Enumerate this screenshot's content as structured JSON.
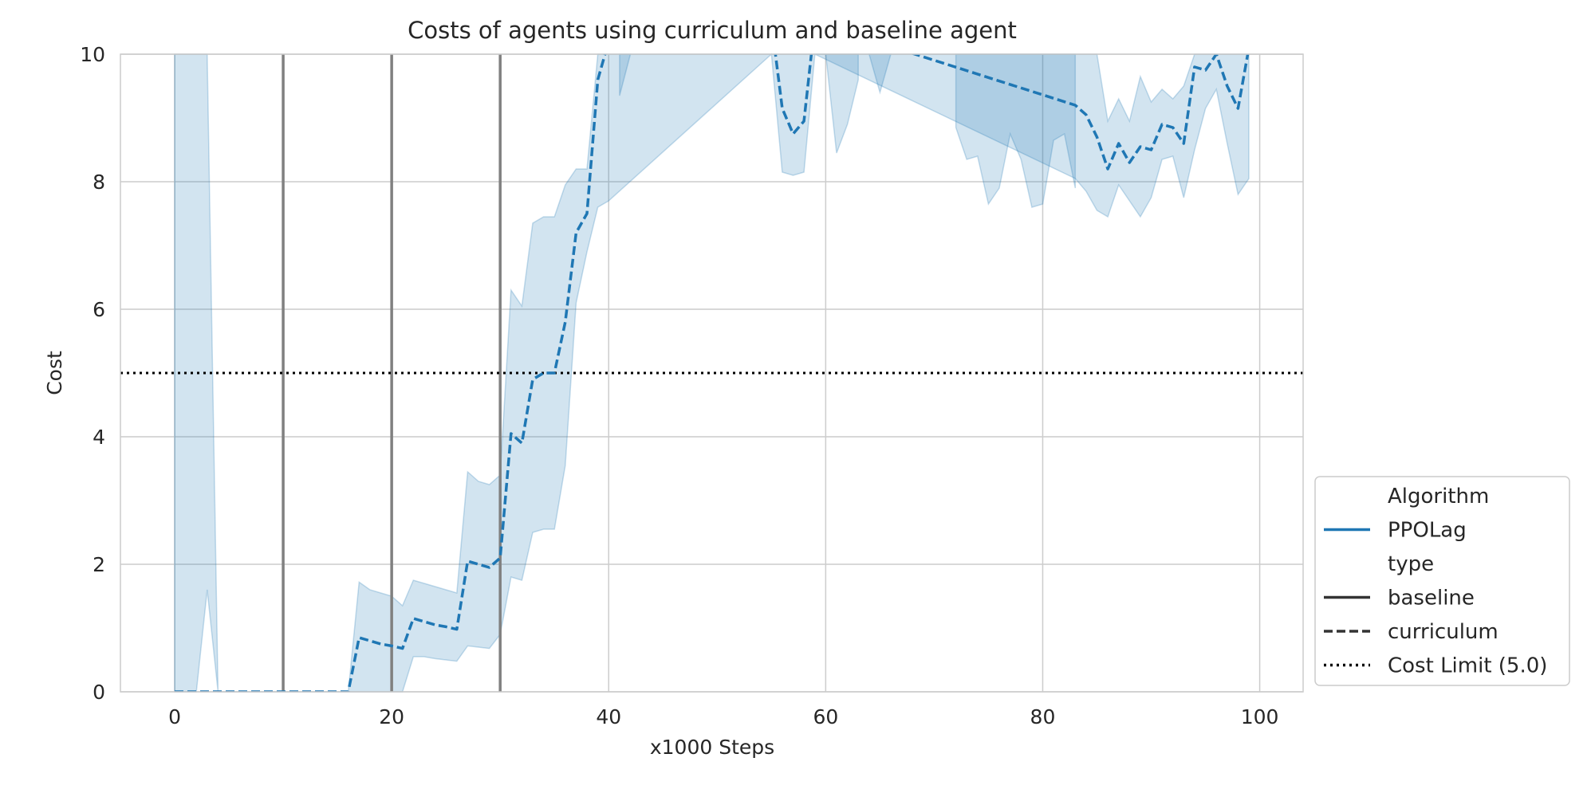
{
  "chart_data": {
    "type": "line",
    "title": "Costs of agents using curriculum and baseline agent",
    "xlabel": "x1000 Steps",
    "ylabel": "Cost",
    "xlim": [
      -5,
      104
    ],
    "ylim": [
      0,
      10
    ],
    "xticks": [
      0,
      20,
      40,
      60,
      80,
      100
    ],
    "yticks": [
      0,
      2,
      4,
      6,
      8,
      10
    ],
    "grid": true,
    "legend_position": "right",
    "colors": {
      "series": "#1f77b4",
      "band": "#1f77b4",
      "curriculum_markers": "#808080",
      "cost_limit": "#000000",
      "grid": "#cccccc",
      "legend_dark": "#333333"
    },
    "curriculum_change_steps": [
      10,
      20,
      30
    ],
    "series": [
      {
        "name": "PPOLag",
        "type": "curriculum",
        "x": [
          0,
          1,
          2,
          3,
          4,
          5,
          6,
          7,
          8,
          9,
          10,
          11,
          12,
          13,
          14,
          15,
          16,
          17,
          18,
          19,
          20,
          21,
          22,
          23,
          24,
          25,
          26,
          27,
          28,
          29,
          30,
          31,
          32,
          33,
          34,
          35,
          36,
          37,
          38,
          39,
          40,
          55,
          56,
          57,
          58,
          59,
          83,
          84,
          85,
          86,
          87,
          88,
          89,
          90,
          91,
          92,
          93,
          94,
          95,
          96,
          97,
          98,
          99
        ],
        "y": [
          0,
          0,
          0,
          0,
          0,
          0,
          0,
          0,
          0,
          0,
          0,
          0,
          0,
          0,
          0,
          0,
          0,
          0.85,
          0.8,
          0.75,
          0.72,
          0.68,
          1.15,
          1.1,
          1.05,
          1.02,
          0.98,
          2.05,
          2.0,
          1.95,
          2.1,
          4.05,
          3.9,
          4.9,
          5.0,
          5.0,
          5.8,
          7.2,
          7.5,
          9.6,
          10.2,
          10.5,
          9.15,
          8.75,
          8.95,
          10.5,
          9.2,
          9.05,
          8.7,
          8.2,
          8.6,
          8.3,
          8.55,
          8.5,
          8.9,
          8.85,
          8.6,
          9.8,
          9.75,
          10.0,
          9.5,
          9.15,
          10.1
        ],
        "y_upper": [
          10.5,
          10.5,
          10.5,
          10.5,
          0,
          0,
          0,
          0,
          0,
          0,
          0,
          0,
          0,
          0,
          0,
          0,
          0,
          1.72,
          1.6,
          1.55,
          1.5,
          1.35,
          1.75,
          1.7,
          1.65,
          1.6,
          1.55,
          3.45,
          3.3,
          3.25,
          3.4,
          6.3,
          6.05,
          7.35,
          7.45,
          7.45,
          7.95,
          8.2,
          8.2,
          10.5,
          10.5,
          10.5,
          10.5,
          10.5,
          10.5,
          10.5,
          10.5,
          10.5,
          10.5,
          8.95,
          9.3,
          8.95,
          9.65,
          9.25,
          9.45,
          9.3,
          9.5,
          10.5,
          10.5,
          10.5,
          10.5,
          10.5,
          10.5
        ],
        "y_lower": [
          0,
          0,
          0,
          1.6,
          0,
          0,
          0,
          0,
          0,
          0,
          0,
          0,
          0,
          0,
          0,
          0,
          0,
          0,
          0,
          0,
          0,
          0,
          0.55,
          0.55,
          0.52,
          0.5,
          0.48,
          0.72,
          0.7,
          0.68,
          0.9,
          1.8,
          1.75,
          2.5,
          2.55,
          2.55,
          3.55,
          6.1,
          6.9,
          7.6,
          7.7,
          10.5,
          8.15,
          8.1,
          8.15,
          10.5,
          8.05,
          7.85,
          7.55,
          7.45,
          7.95,
          7.7,
          7.45,
          7.75,
          8.35,
          8.4,
          7.75,
          8.5,
          9.15,
          9.45,
          8.6,
          7.8,
          8.05
        ]
      }
    ],
    "extra_band_segments": [
      {
        "x": [
          41,
          42
        ],
        "upper": [
          10.5,
          10.5
        ],
        "lower": [
          9.35,
          10.5
        ]
      },
      {
        "x": [
          59,
          60,
          61,
          62,
          63
        ],
        "upper": [
          10.5,
          10.5,
          10.5,
          10.5,
          10.5
        ],
        "lower": [
          10.5,
          10.5,
          8.45,
          8.9,
          9.6
        ]
      },
      {
        "x": [
          64,
          65,
          66
        ],
        "upper": [
          10.5,
          10.5,
          10.5
        ],
        "lower": [
          10.5,
          9.4,
          10.5
        ]
      },
      {
        "x": [
          72,
          73,
          74,
          75,
          76,
          77,
          78,
          79,
          80,
          81,
          82,
          83
        ],
        "upper": [
          10.5,
          10.5,
          10.5,
          10.5,
          10.5,
          10.5,
          10.5,
          10.5,
          10.5,
          10.5,
          10.5,
          10.5
        ],
        "lower": [
          8.85,
          8.35,
          8.4,
          7.65,
          7.9,
          8.75,
          8.35,
          7.6,
          7.65,
          8.65,
          8.75,
          7.9
        ]
      }
    ],
    "reference_lines": [
      {
        "name": "Cost Limit (5.0)",
        "y": 5.0,
        "style": "dotted"
      }
    ],
    "legend": {
      "entries": [
        {
          "label": "Algorithm",
          "style": "header"
        },
        {
          "label": "PPOLag",
          "style": "solid-blue"
        },
        {
          "label": "type",
          "style": "header"
        },
        {
          "label": "baseline",
          "style": "solid-dark"
        },
        {
          "label": "curriculum",
          "style": "dashed-dark"
        },
        {
          "label": "Cost Limit (5.0)",
          "style": "dotted-black"
        }
      ]
    }
  }
}
